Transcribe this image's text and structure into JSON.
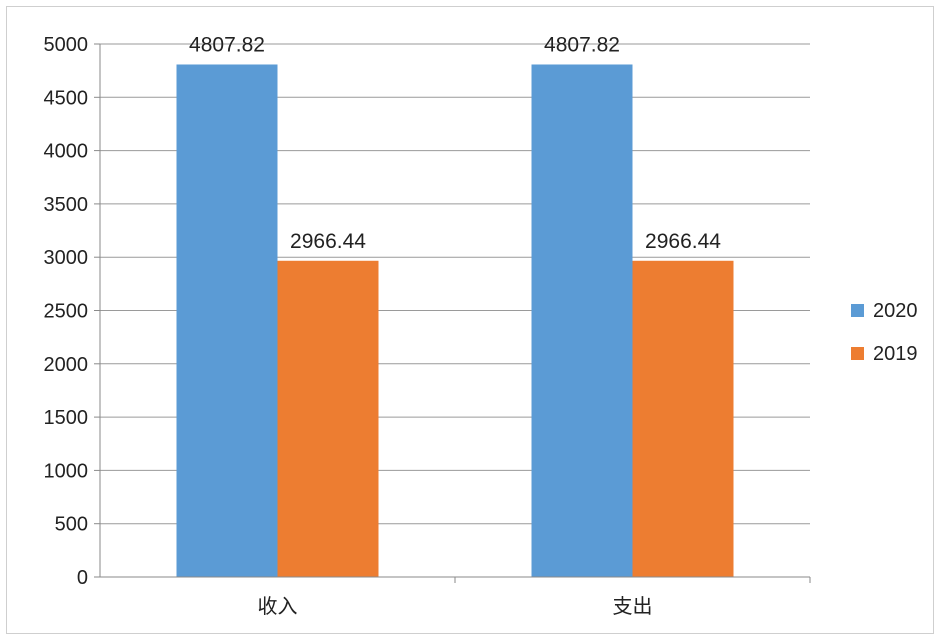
{
  "chart_data": {
    "type": "bar",
    "title": "",
    "xlabel": "",
    "ylabel": "",
    "categories": [
      "收入",
      "支出"
    ],
    "series": [
      {
        "name": "2020",
        "values": [
          4807.82,
          4807.82
        ],
        "labels": [
          "4807.82",
          "4807.82"
        ],
        "color": "#5b9bd5"
      },
      {
        "name": "2019",
        "values": [
          2966.44,
          2966.44
        ],
        "labels": [
          "2966.44",
          "2966.44"
        ],
        "color": "#ed7d31"
      }
    ],
    "ylim": [
      0,
      5000
    ],
    "yticks": [
      "0",
      "500",
      "1000",
      "1500",
      "2000",
      "2500",
      "3000",
      "3500",
      "4000",
      "4500",
      "5000"
    ],
    "grid": true,
    "legend": "right"
  }
}
